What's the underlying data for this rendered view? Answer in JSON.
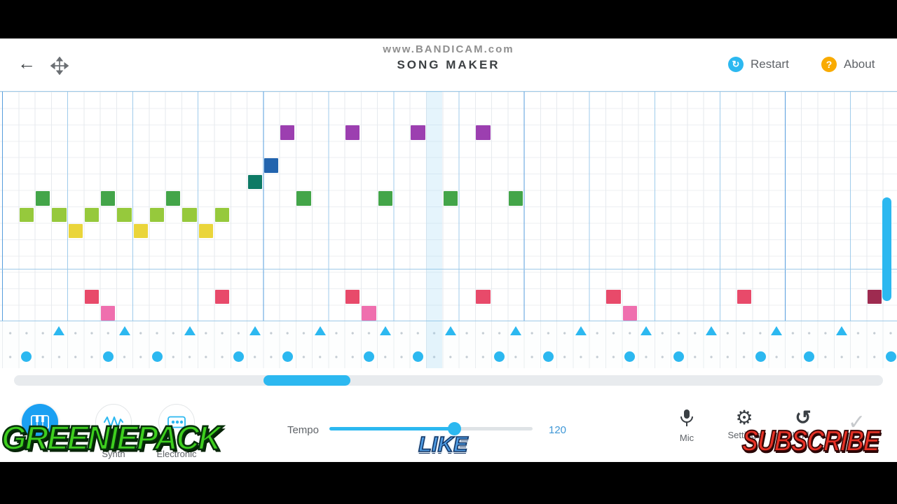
{
  "watermark": "www.BANDICAM.com",
  "header": {
    "title": "SONG MAKER",
    "restart_label": "Restart",
    "about_label": "About"
  },
  "icons": {
    "back": "←",
    "restart": "↻",
    "about_q": "?",
    "gear": "⚙",
    "undo": "↺",
    "check": "✓"
  },
  "toolbar": {
    "instruments": [
      {
        "name": "piano",
        "active": true,
        "label": ""
      },
      {
        "name": "synth",
        "active": false,
        "label": "Synth"
      },
      {
        "name": "beats",
        "active": false,
        "label": "Electronic"
      }
    ],
    "tempo_label": "Tempo",
    "tempo_value": "120",
    "mic_label": "Mic",
    "settings_label": "Settings",
    "undo_label": "Undo"
  },
  "overlays": {
    "left": "GREENIEPACK",
    "center": "LIKE",
    "right": "SUBSCRIBE"
  },
  "colors": {
    "purple": "#9c3fb0",
    "blue": "#2264ae",
    "teal": "#0d7a65",
    "green": "#43a549",
    "lightgreen": "#96c93c",
    "yellow": "#ead53a",
    "red": "#e84a6a",
    "pink": "#ef6fae",
    "darkred": "#9e2b50",
    "percussion": "#2cb8f0",
    "accent": "#2cb8f0",
    "about_badge": "#f9ab00"
  },
  "grid": {
    "columns": 55,
    "melody_rows": 14,
    "notes": [
      {
        "col": 1,
        "row": 7,
        "color": "lightgreen"
      },
      {
        "col": 2,
        "row": 6,
        "color": "green"
      },
      {
        "col": 3,
        "row": 7,
        "color": "lightgreen"
      },
      {
        "col": 4,
        "row": 8,
        "color": "yellow"
      },
      {
        "col": 5,
        "row": 7,
        "color": "lightgreen"
      },
      {
        "col": 6,
        "row": 6,
        "color": "green"
      },
      {
        "col": 7,
        "row": 7,
        "color": "lightgreen"
      },
      {
        "col": 8,
        "row": 8,
        "color": "yellow"
      },
      {
        "col": 9,
        "row": 7,
        "color": "lightgreen"
      },
      {
        "col": 10,
        "row": 6,
        "color": "green"
      },
      {
        "col": 11,
        "row": 7,
        "color": "lightgreen"
      },
      {
        "col": 12,
        "row": 8,
        "color": "yellow"
      },
      {
        "col": 13,
        "row": 7,
        "color": "lightgreen"
      },
      {
        "col": 15,
        "row": 5,
        "color": "teal"
      },
      {
        "col": 16,
        "row": 4,
        "color": "blue"
      },
      {
        "col": 17,
        "row": 2,
        "color": "purple"
      },
      {
        "col": 18,
        "row": 6,
        "color": "green"
      },
      {
        "col": 21,
        "row": 2,
        "color": "purple"
      },
      {
        "col": 23,
        "row": 6,
        "color": "green"
      },
      {
        "col": 25,
        "row": 2,
        "color": "purple"
      },
      {
        "col": 27,
        "row": 6,
        "color": "green"
      },
      {
        "col": 29,
        "row": 2,
        "color": "purple"
      },
      {
        "col": 31,
        "row": 6,
        "color": "green"
      },
      {
        "col": 5,
        "row": 12,
        "color": "red"
      },
      {
        "col": 13,
        "row": 12,
        "color": "red"
      },
      {
        "col": 21,
        "row": 12,
        "color": "red"
      },
      {
        "col": 29,
        "row": 12,
        "color": "red"
      },
      {
        "col": 37,
        "row": 12,
        "color": "red"
      },
      {
        "col": 45,
        "row": 12,
        "color": "red"
      },
      {
        "col": 53,
        "row": 12,
        "color": "darkred"
      },
      {
        "col": 6,
        "row": 13,
        "color": "pink"
      },
      {
        "col": 22,
        "row": 13,
        "color": "pink"
      },
      {
        "col": 38,
        "row": 13,
        "color": "pink"
      }
    ],
    "percussion": {
      "triangle_cols": [
        3,
        7,
        11,
        15,
        19,
        23,
        27,
        31,
        35,
        39,
        43,
        47,
        51
      ],
      "circle_cols": [
        1,
        6,
        9,
        14,
        17,
        22,
        25,
        30,
        33,
        38,
        41,
        46,
        49,
        54
      ]
    }
  }
}
